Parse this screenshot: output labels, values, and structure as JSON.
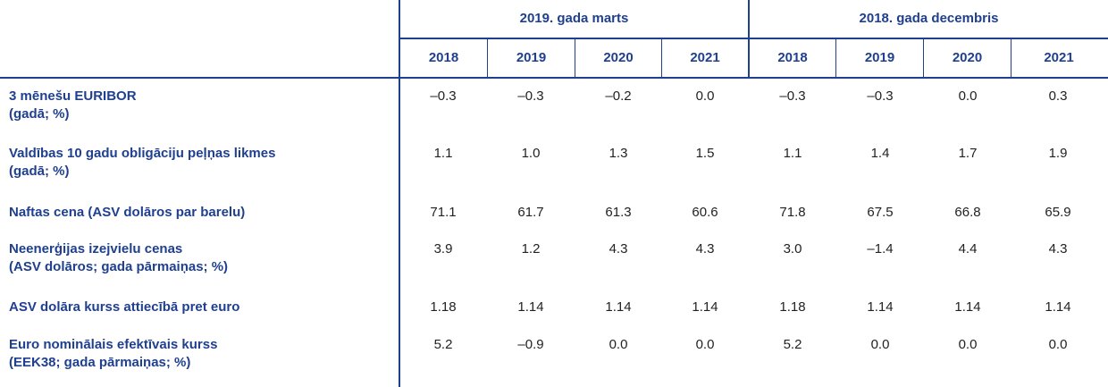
{
  "header": {
    "group_a": "2019. gada marts",
    "group_b": "2018. gada decembris",
    "years": [
      "2018",
      "2019",
      "2020",
      "2021",
      "2018",
      "2019",
      "2020",
      "2021"
    ]
  },
  "rows": [
    {
      "label_line1": "3 mēnešu EURIBOR",
      "label_line2": "(gadā; %)",
      "values": [
        "–0.3",
        "–0.3",
        "–0.2",
        "0.0",
        "–0.3",
        "–0.3",
        "0.0",
        "0.3"
      ]
    },
    {
      "label_line1": "Valdības 10 gadu obligāciju peļņas likmes",
      "label_line2": "(gadā; %)",
      "values": [
        "1.1",
        "1.0",
        "1.3",
        "1.5",
        "1.1",
        "1.4",
        "1.7",
        "1.9"
      ]
    },
    {
      "label_line1": "Naftas cena (ASV dolāros par barelu)",
      "label_line2": "",
      "values": [
        "71.1",
        "61.7",
        "61.3",
        "60.6",
        "71.8",
        "67.5",
        "66.8",
        "65.9"
      ]
    },
    {
      "label_line1": "Neenerģijas izejvielu cenas",
      "label_line2": "(ASV dolāros; gada pārmaiņas; %)",
      "values": [
        "3.9",
        "1.2",
        "4.3",
        "4.3",
        "3.0",
        "–1.4",
        "4.4",
        "4.3"
      ]
    },
    {
      "label_line1": "ASV dolāra kurss attiecībā pret euro",
      "label_line2": "",
      "values": [
        "1.18",
        "1.14",
        "1.14",
        "1.14",
        "1.18",
        "1.14",
        "1.14",
        "1.14"
      ]
    },
    {
      "label_line1": "Euro nominālais efektīvais kurss",
      "label_line2": "(EEK38; gada pārmaiņas; %)",
      "values": [
        "5.2",
        "–0.9",
        "0.0",
        "0.0",
        "5.2",
        "0.0",
        "0.0",
        "0.0"
      ]
    }
  ]
}
